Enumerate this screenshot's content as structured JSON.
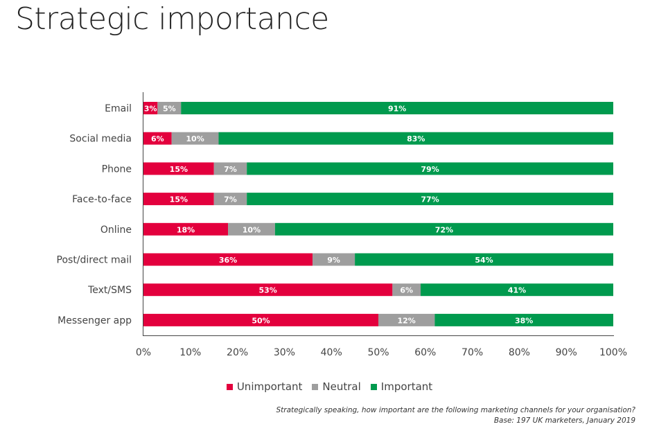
{
  "title": "Strategic importance",
  "colors": {
    "Unimportant": "#e3003d",
    "Neutral": "#9e9e9e",
    "Important": "#009a4e"
  },
  "chart_data": {
    "type": "bar",
    "orientation": "horizontal",
    "stacked": true,
    "categories": [
      "Email",
      "Social media",
      "Phone",
      "Face-to-face",
      "Online",
      "Post/direct mail",
      "Text/SMS",
      "Messenger app"
    ],
    "series": [
      {
        "name": "Unimportant",
        "values": [
          3,
          6,
          15,
          15,
          18,
          36,
          53,
          50
        ]
      },
      {
        "name": "Neutral",
        "values": [
          5,
          10,
          7,
          7,
          10,
          9,
          6,
          12
        ]
      },
      {
        "name": "Important",
        "values": [
          91,
          83,
          79,
          77,
          72,
          54,
          41,
          38
        ]
      }
    ],
    "data_labels": [
      [
        "3%",
        "6%",
        "15%",
        "15%",
        "18%",
        "36%",
        "53%",
        "50%"
      ],
      [
        "5%",
        "10%",
        "7%",
        "7%",
        "10%",
        "9%",
        "6%",
        "12%"
      ],
      [
        "91%",
        "83%",
        "79%",
        "77%",
        "72%",
        "54%",
        "41%",
        "38%"
      ]
    ],
    "xlim": [
      0,
      100
    ],
    "x_ticks": [
      "0%",
      "10%",
      "20%",
      "30%",
      "40%",
      "50%",
      "60%",
      "70%",
      "80%",
      "90%",
      "100%"
    ],
    "grid": false,
    "legend_position": "bottom"
  },
  "footnote": {
    "question": "Strategically speaking, how important are the following marketing channels for your organisation?",
    "base": "Base: 197 UK marketers, January 2019"
  }
}
